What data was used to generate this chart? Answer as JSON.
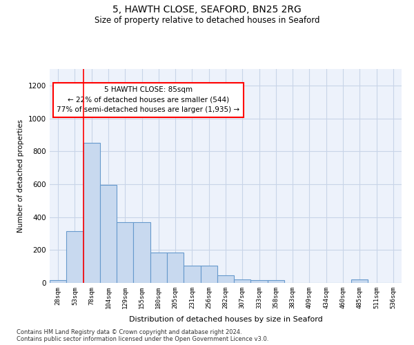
{
  "title": "5, HAWTH CLOSE, SEAFORD, BN25 2RG",
  "subtitle": "Size of property relative to detached houses in Seaford",
  "xlabel": "Distribution of detached houses by size in Seaford",
  "ylabel": "Number of detached properties",
  "categories": [
    "28sqm",
    "53sqm",
    "78sqm",
    "104sqm",
    "129sqm",
    "155sqm",
    "180sqm",
    "205sqm",
    "231sqm",
    "256sqm",
    "282sqm",
    "307sqm",
    "333sqm",
    "358sqm",
    "383sqm",
    "409sqm",
    "434sqm",
    "460sqm",
    "485sqm",
    "511sqm",
    "536sqm"
  ],
  "values": [
    15,
    315,
    850,
    595,
    370,
    370,
    185,
    185,
    105,
    105,
    45,
    20,
    15,
    15,
    0,
    0,
    0,
    0,
    20,
    0,
    0
  ],
  "bar_color": "#c8d9ef",
  "bar_edge_color": "#6699cc",
  "red_line_index": 2,
  "annotation_text": "5 HAWTH CLOSE: 85sqm\n← 22% of detached houses are smaller (544)\n77% of semi-detached houses are larger (1,935) →",
  "annotation_box_color": "white",
  "annotation_box_edge": "red",
  "ylim": [
    0,
    1300
  ],
  "yticks": [
    0,
    200,
    400,
    600,
    800,
    1000,
    1200
  ],
  "footer_line1": "Contains HM Land Registry data © Crown copyright and database right 2024.",
  "footer_line2": "Contains public sector information licensed under the Open Government Licence v3.0.",
  "bg_color": "white",
  "grid_color": "#c8d4e8",
  "plot_bg_color": "#edf2fb"
}
